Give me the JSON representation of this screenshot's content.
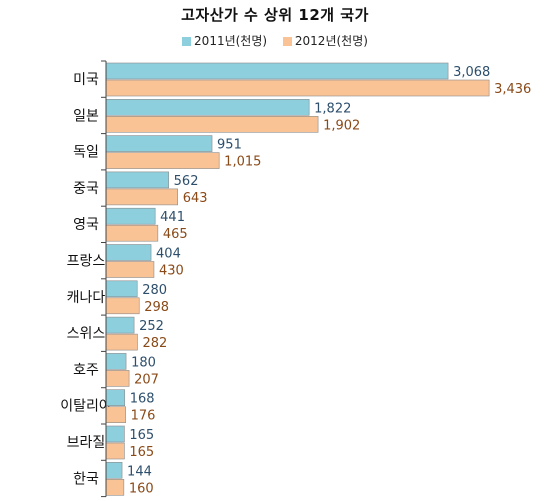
{
  "chart_data": {
    "type": "bar",
    "orientation": "horizontal",
    "title": "고자산가 수 상위 12개 국가",
    "categories": [
      "미국",
      "일본",
      "독일",
      "중국",
      "영국",
      "프랑스",
      "캐나다",
      "스위스",
      "호주",
      "이탈리아",
      "브라질",
      "한국"
    ],
    "series": [
      {
        "name": "2011년(천명)",
        "color": "#8ecfdd",
        "values": [
          3068,
          1822,
          951,
          562,
          441,
          404,
          280,
          252,
          180,
          168,
          165,
          144
        ],
        "labels": [
          "3,068",
          "1,822",
          "951",
          "562",
          "441",
          "404",
          "280",
          "252",
          "180",
          "168",
          "165",
          "144"
        ]
      },
      {
        "name": "2012년(천명)",
        "color": "#f9c396",
        "values": [
          3436,
          1902,
          1015,
          643,
          465,
          430,
          298,
          282,
          207,
          176,
          165,
          160
        ],
        "labels": [
          "3,436",
          "1,902",
          "1,015",
          "643",
          "465",
          "430",
          "298",
          "282",
          "207",
          "176",
          "165",
          "160"
        ]
      }
    ],
    "xlim": [
      0,
      3500
    ],
    "legend_position": "top",
    "grid": false
  }
}
